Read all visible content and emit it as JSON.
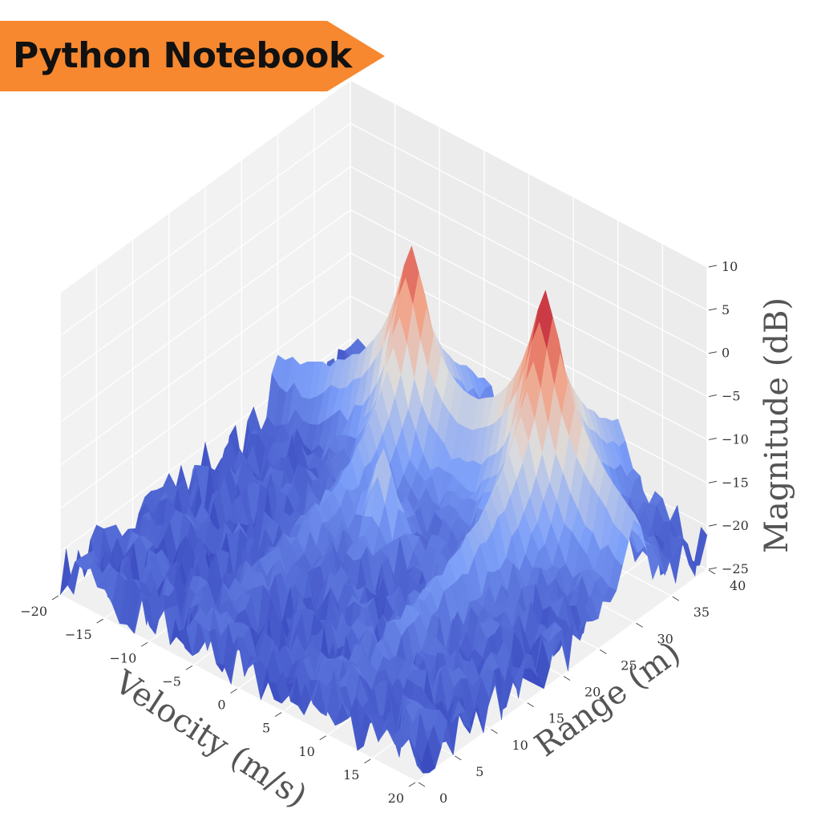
{
  "banner": {
    "label": "Python Notebook",
    "color": "#f7882f"
  },
  "chart_data": {
    "type": "surface",
    "colormap": "coolwarm",
    "xlabel": "Velocity (m/s)",
    "ylabel": "Range (m)",
    "zlabel": "Magnitude (dB)",
    "xlim": [
      -20,
      20
    ],
    "ylim": [
      0,
      40
    ],
    "zlim": [
      -25,
      10
    ],
    "x_ticks": [
      "−20",
      "−15",
      "−10",
      "−5",
      "0",
      "5",
      "10",
      "15",
      "20"
    ],
    "y_ticks": [
      "0",
      "5",
      "10",
      "15",
      "20",
      "25",
      "30",
      "35",
      "40"
    ],
    "z_ticks": [
      "−25",
      "−20",
      "−15",
      "−10",
      "−5",
      "0",
      "5",
      "10"
    ],
    "noise_floor_db": -22,
    "targets": [
      {
        "velocity": -5,
        "range": 30,
        "peak_db": 5
      },
      {
        "velocity": 10,
        "range": 30,
        "peak_db": 8
      },
      {
        "velocity": 0,
        "range": 20,
        "peak_db": -10
      }
    ]
  }
}
